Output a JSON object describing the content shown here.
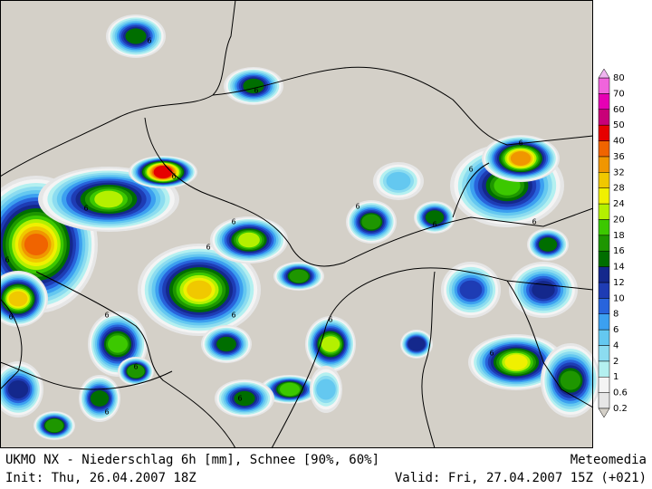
{
  "map": {
    "footer": {
      "title": "UKMO NX - Niederschlag 6h [mm], Schnee [90%, 60%]",
      "brand": "Meteomedia",
      "init": "Init: Thu, 26.04.2007 18Z",
      "valid": "Valid: Fri, 27.04.2007 15Z (+021)"
    },
    "legend": {
      "levels": [
        0.2,
        0.6,
        1,
        2,
        4,
        6,
        8,
        10,
        12,
        14,
        16,
        18,
        20,
        24,
        28,
        32,
        36,
        40,
        50,
        60,
        70,
        80
      ],
      "colors": [
        "#e6e6e6",
        "#f4f4f4",
        "#b4f0f0",
        "#8cdcf0",
        "#64c8f0",
        "#3ca0f0",
        "#2864dc",
        "#1e3cb4",
        "#14288c",
        "#006e00",
        "#1e9600",
        "#3cc800",
        "#b4f000",
        "#f0f000",
        "#f0c800",
        "#f09600",
        "#f06400",
        "#e60000",
        "#c80078",
        "#e600b4",
        "#f064dc",
        "#f0b4f0"
      ]
    },
    "contour_labels": [
      6,
      6,
      6,
      6,
      6,
      6,
      6,
      6,
      6,
      6,
      6,
      6,
      6,
      6,
      6,
      6,
      6,
      6,
      6,
      6
    ]
  }
}
